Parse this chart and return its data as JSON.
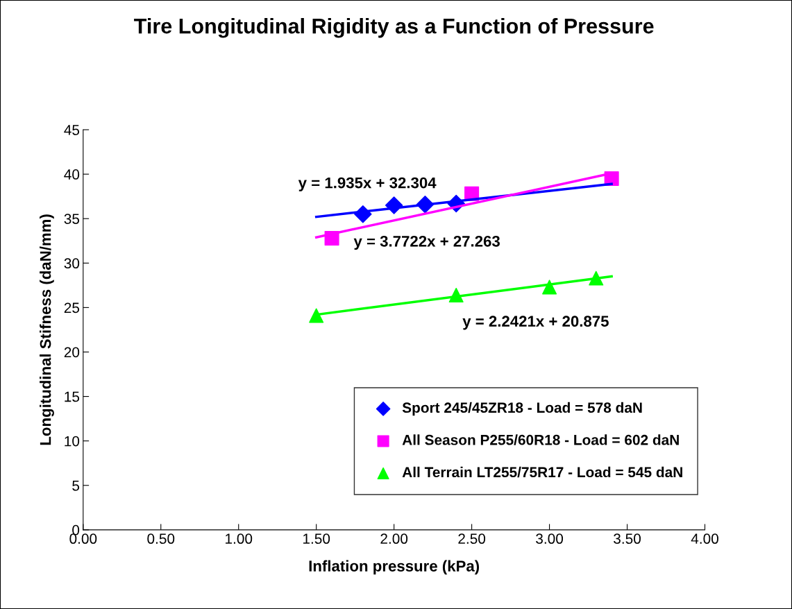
{
  "chart_data": {
    "type": "scatter",
    "title": "Tire Longitudinal Rigidity as a Function of Pressure",
    "xlabel": "Inflation pressure (kPa)",
    "ylabel": "Longitudinal Stifness (daN/mm)",
    "xlim": [
      0,
      4
    ],
    "ylim": [
      0,
      45
    ],
    "xticks": [
      {
        "value": 0,
        "label": "0.00"
      },
      {
        "value": 0.5,
        "label": "0.50"
      },
      {
        "value": 1,
        "label": "1.00"
      },
      {
        "value": 1.5,
        "label": "1.50"
      },
      {
        "value": 2,
        "label": "2.00"
      },
      {
        "value": 2.5,
        "label": "2.50"
      },
      {
        "value": 3,
        "label": "3.00"
      },
      {
        "value": 3.5,
        "label": "3.50"
      },
      {
        "value": 4,
        "label": "4.00"
      }
    ],
    "yticks": [
      0,
      5,
      10,
      15,
      20,
      25,
      30,
      35,
      40,
      45
    ],
    "grid": false,
    "legend": "bottom right",
    "series": [
      {
        "name": "Sport 245/45ZR18 - Load = 578 daN",
        "color": "#0000ff",
        "marker": "diamond",
        "x": [
          1.8,
          2.0,
          2.2,
          2.4
        ],
        "values": [
          35.5,
          36.5,
          36.6,
          36.7
        ]
      },
      {
        "name": "All Season P255/60R18 - Load = 602 daN",
        "color": "#ff00ff",
        "marker": "square",
        "x": [
          1.6,
          2.5,
          3.4
        ],
        "values": [
          32.8,
          37.8,
          39.5
        ]
      },
      {
        "name": "All Terrain LT255/75R17 - Load = 545 daN",
        "color": "#00ff00",
        "marker": "triangle",
        "x": [
          1.5,
          2.4,
          3.0,
          3.3
        ],
        "values": [
          24.1,
          26.4,
          27.3,
          28.3
        ]
      },
      {
        "type": "line",
        "color": "#0000ff",
        "x": [
          1.5,
          3.4
        ],
        "values": [
          35.2,
          38.9
        ]
      },
      {
        "type": "line",
        "color": "#ff00ff",
        "x": [
          1.5,
          3.4
        ],
        "values": [
          32.9,
          40.1
        ]
      },
      {
        "type": "line",
        "color": "#00ff00",
        "x": [
          1.5,
          3.4
        ],
        "values": [
          24.2,
          28.5
        ]
      }
    ],
    "annotations": [
      "y = 1.935x + 32.304",
      "y = 3.7722x + 27.263",
      "y = 2.2421x + 20.875"
    ]
  }
}
